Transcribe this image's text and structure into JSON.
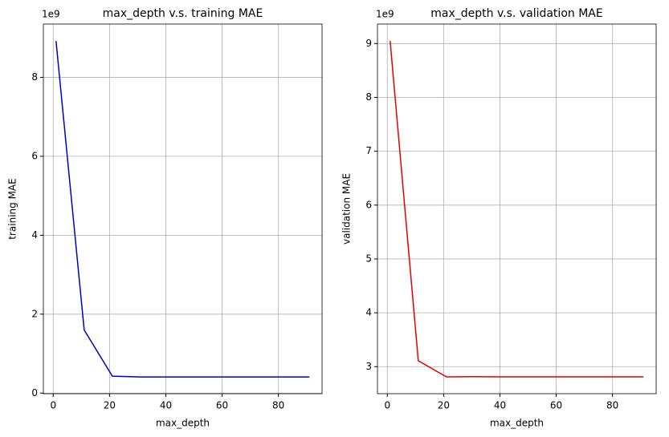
{
  "chart_data": [
    {
      "type": "line",
      "title": "max_depth v.s. training MAE",
      "x_label": "max_depth",
      "y_label": "training MAE",
      "y_offset_text": "1e9",
      "x": [
        1,
        11,
        21,
        31,
        41,
        51,
        61,
        71,
        81,
        91
      ],
      "series": [
        {
          "color": "#0000cc",
          "values": [
            8.92,
            1.6,
            0.43,
            0.41,
            0.41,
            0.41,
            0.41,
            0.41,
            0.41,
            0.41
          ]
        }
      ],
      "xlim": [
        -3.5,
        95.5
      ],
      "xticks": [
        0,
        20,
        40,
        60,
        80
      ],
      "ylim": [
        -0.015,
        9.35
      ],
      "yticks": [
        0,
        2,
        4,
        6,
        8
      ],
      "grid": true
    },
    {
      "type": "line",
      "title": "max_depth v.s. validation MAE",
      "x_label": "max_depth",
      "y_label": "validation MAE",
      "y_offset_text": "1e9",
      "x": [
        1,
        11,
        21,
        31,
        41,
        51,
        61,
        71,
        81,
        91
      ],
      "series": [
        {
          "color": "#e00000",
          "values": [
            9.05,
            3.11,
            2.81,
            2.815,
            2.81,
            2.81,
            2.81,
            2.81,
            2.81,
            2.81
          ]
        }
      ],
      "xlim": [
        -3.5,
        95.5
      ],
      "xticks": [
        0,
        20,
        40,
        60,
        80
      ],
      "ylim": [
        2.498,
        9.362
      ],
      "yticks": [
        3,
        4,
        5,
        6,
        7,
        8,
        9
      ],
      "grid": true
    }
  ]
}
